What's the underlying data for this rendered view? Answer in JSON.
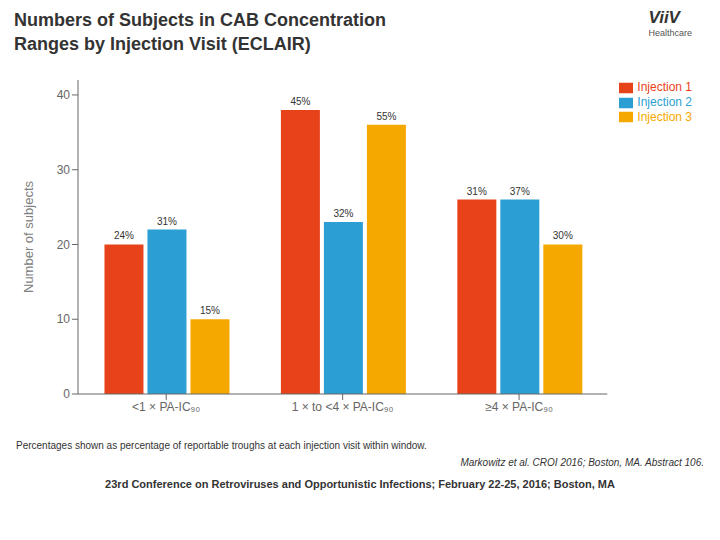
{
  "chart_data": {
    "type": "bar",
    "title": "Numbers of Subjects in CAB Concentration\nRanges by Injection Visit (ECLAIR)",
    "categories": [
      "<1 × PA-IC₉₀",
      "1 × to <4 × PA-IC₉₀",
      "≥4 × PA-IC₉₀"
    ],
    "series": [
      {
        "name": "Injection 1",
        "color": "#E8421A",
        "values": [
          20,
          38,
          26
        ],
        "value_labels": [
          "24%",
          "45%",
          "31%"
        ]
      },
      {
        "name": "Injection 2",
        "color": "#2B9FD4",
        "values": [
          22,
          23,
          26
        ],
        "value_labels": [
          "31%",
          "32%",
          "37%"
        ]
      },
      {
        "name": "Injection 3",
        "color": "#F5A800",
        "values": [
          10,
          36,
          20
        ],
        "value_labels": [
          "15%",
          "55%",
          "30%"
        ]
      }
    ],
    "ylabel": "Number of subjects",
    "ylim": [
      0,
      42
    ],
    "yticks": [
      0,
      10,
      20,
      30,
      40
    ],
    "grid": false,
    "legend": "upper right",
    "data_labels": true,
    "annotations": [
      "ViiV",
      "Healthcare",
      "Percentages shown as percentage of reportable troughs at each injection visit within window.",
      "Markowitz et al. CROI 2016; Boston, MA. Abstract 106.",
      "23rd Conference on Retroviruses and Opportunistic Infections; February 22-25, 2016; Boston, MA"
    ]
  }
}
